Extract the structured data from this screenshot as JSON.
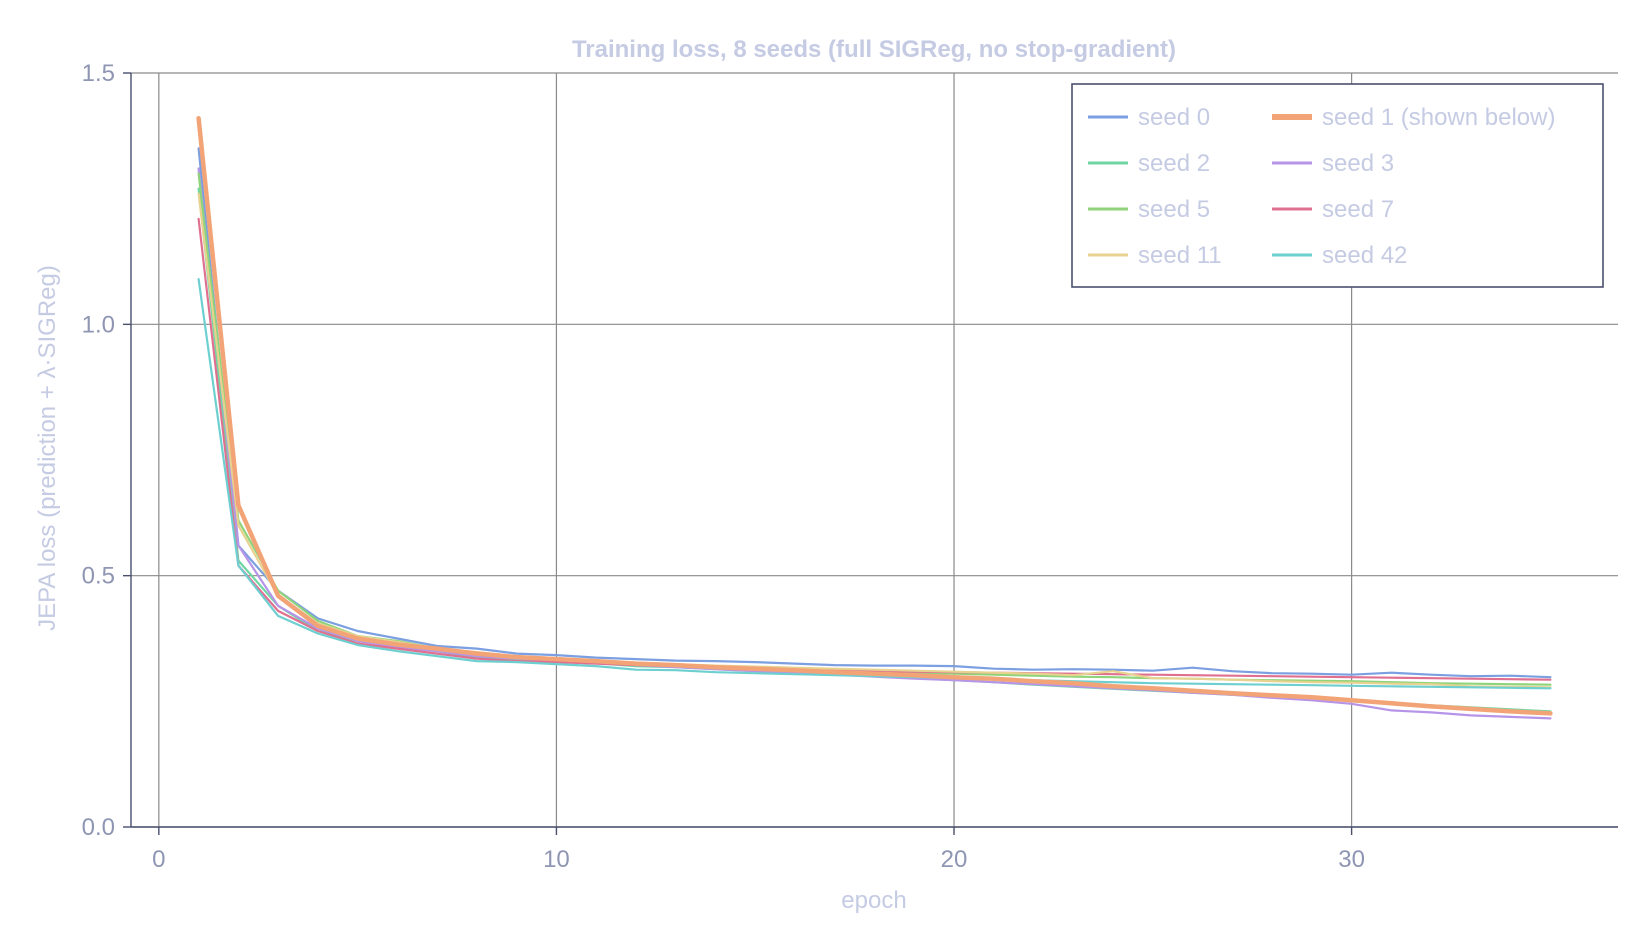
{
  "chart_data": {
    "type": "line",
    "title": "Training loss, 8 seeds (full SIGReg, no stop-gradient)",
    "xlabel": "epoch",
    "ylabel": "JEPA loss (prediction + λ·SIGReg)",
    "xlim": [
      -0.7,
      36.7
    ],
    "ylim": [
      0,
      1.5
    ],
    "x_ticks": [
      0,
      10,
      20,
      30
    ],
    "y_ticks": [
      0.0,
      0.5,
      1.0,
      1.5
    ],
    "x_tick_labels": [
      "0",
      "10",
      "20",
      "30"
    ],
    "y_tick_labels": [
      "0.0",
      "0.5",
      "1.0",
      "1.5"
    ],
    "grid": true,
    "legend_position": "top-right",
    "legend_columns": 2,
    "x": [
      1,
      2,
      3,
      4,
      5,
      6,
      7,
      8,
      9,
      10,
      11,
      12,
      13,
      14,
      15,
      16,
      17,
      18,
      19,
      20,
      21,
      22,
      23,
      24,
      25,
      26,
      27,
      28,
      29,
      30,
      31,
      32,
      33,
      34,
      35
    ],
    "series": [
      {
        "name": "seed 0",
        "color": "#7b9fe0",
        "values": [
          1.35,
          0.56,
          0.47,
          0.415,
          0.39,
          0.375,
          0.36,
          0.355,
          0.345,
          0.342,
          0.337,
          0.334,
          0.331,
          0.33,
          0.328,
          0.325,
          0.322,
          0.321,
          0.321,
          0.32,
          0.315,
          0.313,
          0.314,
          0.313,
          0.311,
          0.317,
          0.31,
          0.306,
          0.305,
          0.303,
          0.307,
          0.303,
          0.3,
          0.301,
          0.298
        ]
      },
      {
        "name": "seed 1 (shown below)",
        "color": "#f2a477",
        "highlight": true,
        "values": [
          1.41,
          0.64,
          0.46,
          0.4,
          0.375,
          0.363,
          0.355,
          0.345,
          0.338,
          0.334,
          0.33,
          0.325,
          0.322,
          0.318,
          0.315,
          0.312,
          0.308,
          0.305,
          0.302,
          0.298,
          0.295,
          0.29,
          0.286,
          0.28,
          0.276,
          0.271,
          0.266,
          0.262,
          0.258,
          0.252,
          0.246,
          0.24,
          0.235,
          0.23,
          0.226
        ]
      },
      {
        "name": "seed 2",
        "color": "#6fd6a3",
        "values": [
          1.27,
          0.53,
          0.44,
          0.39,
          0.37,
          0.36,
          0.35,
          0.338,
          0.332,
          0.33,
          0.326,
          0.32,
          0.318,
          0.314,
          0.31,
          0.307,
          0.303,
          0.3,
          0.296,
          0.292,
          0.288,
          0.283,
          0.279,
          0.275,
          0.271,
          0.267,
          0.263,
          0.259,
          0.255,
          0.251,
          0.247,
          0.242,
          0.238,
          0.234,
          0.23
        ]
      },
      {
        "name": "seed 3",
        "color": "#b694e8",
        "values": [
          1.31,
          0.56,
          0.44,
          0.395,
          0.37,
          0.358,
          0.35,
          0.34,
          0.335,
          0.332,
          0.328,
          0.322,
          0.318,
          0.314,
          0.31,
          0.307,
          0.303,
          0.299,
          0.295,
          0.292,
          0.288,
          0.284,
          0.28,
          0.276,
          0.272,
          0.267,
          0.263,
          0.257,
          0.252,
          0.245,
          0.232,
          0.228,
          0.222,
          0.219,
          0.216
        ]
      },
      {
        "name": "seed 5",
        "color": "#8fd47a",
        "values": [
          1.3,
          0.61,
          0.47,
          0.41,
          0.38,
          0.37,
          0.355,
          0.345,
          0.338,
          0.335,
          0.33,
          0.326,
          0.322,
          0.319,
          0.316,
          0.313,
          0.31,
          0.309,
          0.307,
          0.305,
          0.303,
          0.301,
          0.299,
          0.298,
          0.296,
          0.295,
          0.293,
          0.292,
          0.291,
          0.29,
          0.288,
          0.286,
          0.285,
          0.284,
          0.283
        ]
      },
      {
        "name": "seed 7",
        "color": "#e07090",
        "values": [
          1.21,
          0.52,
          0.43,
          0.39,
          0.365,
          0.355,
          0.345,
          0.335,
          0.33,
          0.328,
          0.325,
          0.322,
          0.32,
          0.318,
          0.316,
          0.314,
          0.312,
          0.31,
          0.309,
          0.308,
          0.307,
          0.306,
          0.305,
          0.304,
          0.303,
          0.302,
          0.301,
          0.3,
          0.299,
          0.298,
          0.297,
          0.296,
          0.295,
          0.294,
          0.293
        ]
      },
      {
        "name": "seed 11",
        "color": "#e8d290",
        "values": [
          1.26,
          0.6,
          0.46,
          0.405,
          0.38,
          0.368,
          0.355,
          0.348,
          0.34,
          0.336,
          0.33,
          0.327,
          0.324,
          0.321,
          0.319,
          0.317,
          0.315,
          0.313,
          0.311,
          0.309,
          0.307,
          0.305,
          0.302,
          0.31,
          0.296,
          0.295,
          0.293,
          0.29,
          0.288,
          0.287,
          0.285,
          0.284,
          0.28,
          0.279,
          0.278
        ]
      },
      {
        "name": "seed 42",
        "color": "#6ecfd0",
        "values": [
          1.09,
          0.52,
          0.42,
          0.385,
          0.362,
          0.35,
          0.34,
          0.33,
          0.328,
          0.324,
          0.32,
          0.313,
          0.312,
          0.308,
          0.306,
          0.304,
          0.302,
          0.3,
          0.298,
          0.296,
          0.294,
          0.292,
          0.29,
          0.288,
          0.286,
          0.285,
          0.284,
          0.283,
          0.282,
          0.281,
          0.28,
          0.279,
          0.278,
          0.277,
          0.276
        ]
      }
    ]
  }
}
